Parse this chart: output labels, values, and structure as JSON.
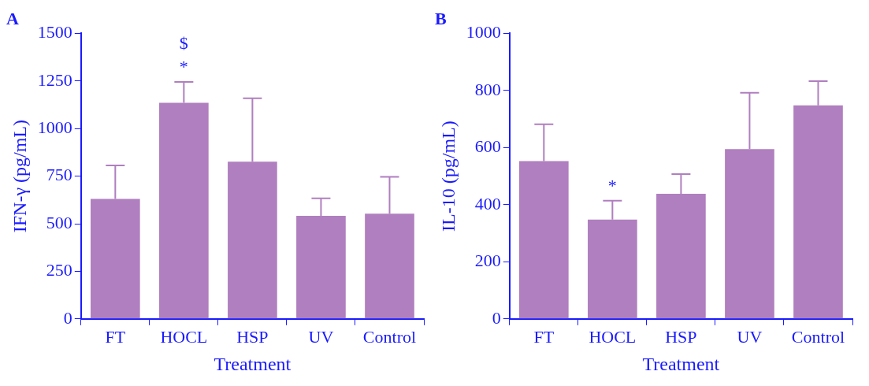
{
  "chart_data": [
    {
      "type": "bar",
      "title": "A",
      "xlabel": "Treatment",
      "ylabel": "IFN-γ (pg/mL)",
      "categories": [
        "FT",
        "HOCL",
        "HSP",
        "UV",
        "Control"
      ],
      "color": "#b07fbf",
      "values": [
        630,
        1135,
        826,
        541,
        553
      ],
      "errors": [
        [
          630,
          806
        ],
        [
          1135,
          1245
        ],
        [
          826,
          1159
        ],
        [
          541,
          634
        ],
        [
          553,
          746
        ]
      ],
      "ylim": [
        0,
        1500
      ],
      "yticks": [
        0,
        250,
        500,
        750,
        1000,
        1250,
        1500
      ],
      "grid": false,
      "annotations": [
        {
          "text": "*",
          "x": "HOCL",
          "y": 1245
        },
        {
          "text": "$",
          "x": "HOCL",
          "y": 1245
        }
      ]
    },
    {
      "type": "bar",
      "title": "B",
      "xlabel": "Treatment",
      "ylabel": "IL-10 (pg/mL)",
      "categories": [
        "FT",
        "HOCL",
        "HSP",
        "UV",
        "Control"
      ],
      "color": "#b07fbf",
      "values": [
        553,
        348,
        438,
        595,
        748
      ],
      "errors": [
        [
          553,
          682
        ],
        [
          348,
          414
        ],
        [
          438,
          507
        ],
        [
          595,
          792
        ],
        [
          748,
          833
        ]
      ],
      "ylim": [
        0,
        1000
      ],
      "yticks": [
        0,
        200,
        400,
        600,
        800,
        1000
      ],
      "grid": false,
      "annotations": [
        {
          "text": "*",
          "x": "HOCL",
          "y": 414
        }
      ]
    }
  ]
}
